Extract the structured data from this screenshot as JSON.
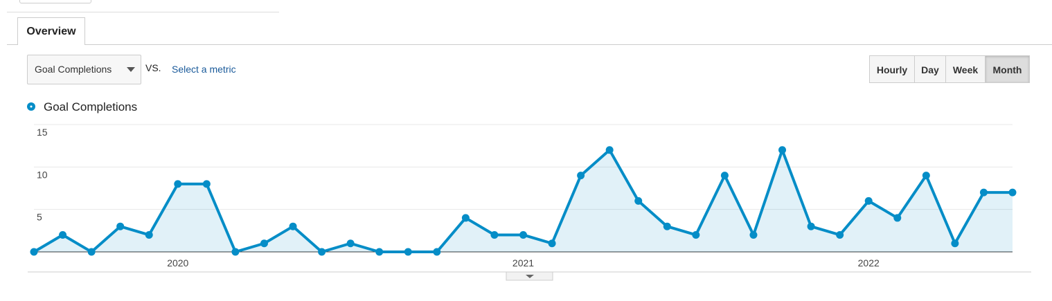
{
  "ui": {
    "tab": "Overview",
    "metric_dropdown": "Goal Completions",
    "vs": "VS.",
    "select_metric": "Select a metric",
    "buttons": [
      "Hourly",
      "Day",
      "Week",
      "Month"
    ],
    "active_button": "Month"
  },
  "chart_data": {
    "type": "line",
    "categories": [
      null,
      null,
      null,
      null,
      null,
      "2020",
      null,
      null,
      null,
      null,
      null,
      null,
      null,
      null,
      null,
      null,
      null,
      "2021",
      null,
      null,
      null,
      null,
      null,
      null,
      null,
      null,
      null,
      null,
      null,
      "2022",
      null,
      null,
      null,
      null,
      null
    ],
    "series": [
      {
        "name": "Goal Completions",
        "color": "#058dc7",
        "values": [
          0,
          2,
          0,
          3,
          2,
          8,
          8,
          0,
          1,
          3,
          0,
          1,
          0,
          0,
          0,
          4,
          2,
          2,
          1,
          9,
          12,
          6,
          3,
          2,
          9,
          2,
          12,
          3,
          2,
          6,
          4,
          9,
          1,
          7,
          7
        ]
      }
    ],
    "ylim": [
      0,
      15
    ],
    "yticks": [
      5,
      10,
      15
    ],
    "grid": true,
    "area": true
  }
}
